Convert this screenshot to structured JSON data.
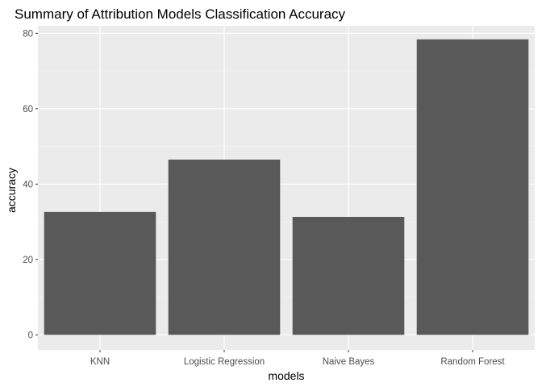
{
  "chart_data": {
    "type": "bar",
    "title": "Summary of Attribution Models Classification Accuracy",
    "xlabel": "models",
    "ylabel": "accuracy",
    "categories": [
      "KNN",
      "Logistic Regression",
      "Naive Bayes",
      "Random Forest"
    ],
    "values": [
      32.6,
      46.5,
      31.3,
      78.4
    ],
    "ylim": [
      -4,
      82
    ],
    "yticks": [
      0,
      20,
      40,
      60,
      80
    ],
    "grid": true,
    "colors": {
      "bar": "#595959",
      "panel_background": "#ebebeb",
      "grid_major": "#ffffff",
      "grid_minor": "#f5f5f5"
    }
  }
}
